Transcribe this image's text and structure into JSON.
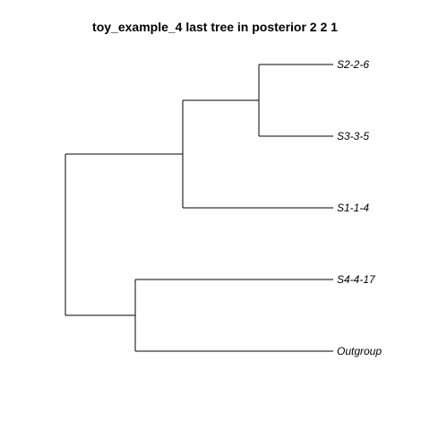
{
  "title": "toy_example_4 last tree in posterior 2 2 1",
  "tree": {
    "tips": [
      "S2-2-6",
      "S3-3-5",
      "S1-1-4",
      "S4-4-17",
      "Outgroup"
    ],
    "newick": "(((S2-2-6,S3-3-5),S1-1-4),(S4-4-17,Outgroup));"
  },
  "colors": {
    "branch": "#000000",
    "label": "#000000",
    "background": "#ffffff"
  }
}
